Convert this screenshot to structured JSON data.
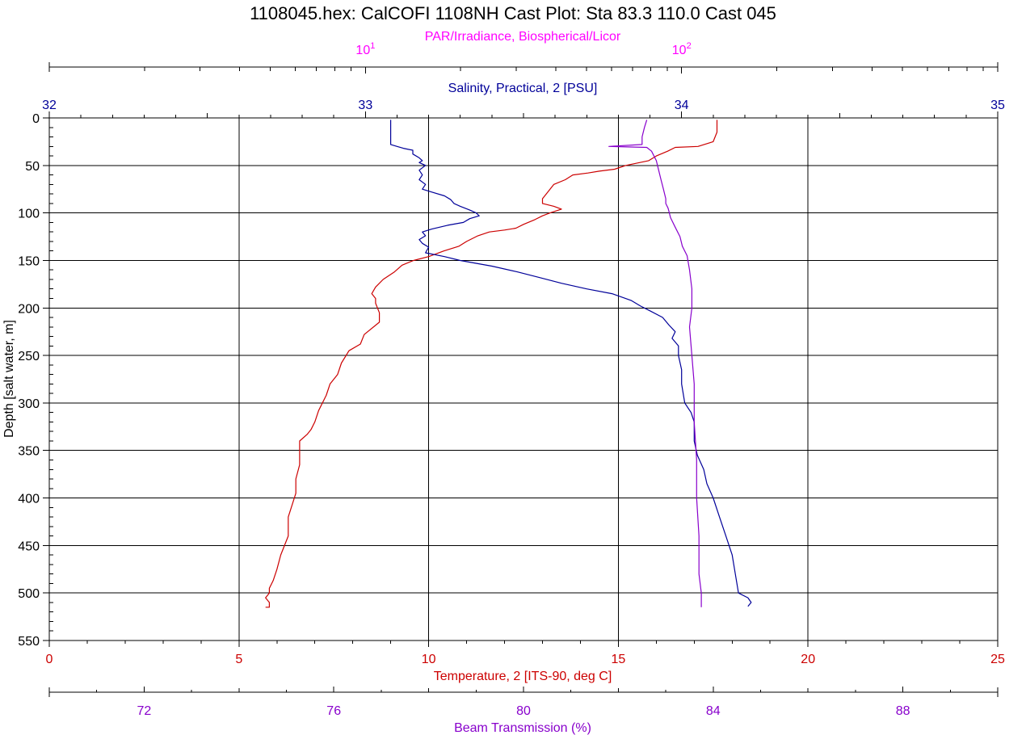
{
  "chart_data": {
    "type": "line",
    "title": "1108045.hex:  CalCOFI 1108NH Cast Plot: Sta 83.3  110.0  Cast 045",
    "ylabel": "Depth [salt water, m]",
    "ylim": [
      550,
      0
    ],
    "y_ticks": [
      "0",
      "50",
      "100",
      "150",
      "200",
      "250",
      "300",
      "350",
      "400",
      "450",
      "500",
      "550"
    ],
    "grid": true,
    "colors": {
      "temperature": "#cc0000",
      "salinity": "#000099",
      "beam": "#8800cc",
      "par": "#ff00ff",
      "grid": "#000000"
    },
    "axes": {
      "par": {
        "label": "PAR/Irradiance, Biospherical/Licor",
        "scale": "log",
        "range": [
          1,
          1000
        ],
        "tick_labels": [
          {
            "value": 10,
            "base": "10",
            "exponent": "1"
          },
          {
            "value": 100,
            "base": "10",
            "exponent": "2"
          }
        ]
      },
      "salinity": {
        "label": "Salinity, Practical, 2 [PSU]",
        "range": [
          32,
          35
        ],
        "ticks": [
          32,
          33,
          34,
          35
        ],
        "tick_labels": [
          "32",
          "33",
          "34",
          "35"
        ]
      },
      "temperature": {
        "label": "Temperature, 2 [ITS-90, deg C]",
        "range": [
          0,
          25
        ],
        "ticks": [
          0,
          5,
          10,
          15,
          20,
          25
        ],
        "tick_labels": [
          "0",
          "5",
          "10",
          "15",
          "20",
          "25"
        ]
      },
      "beam": {
        "label": "Beam Transmission (%)",
        "range": [
          70,
          90
        ],
        "ticks": [
          72,
          76,
          80,
          84,
          88
        ],
        "tick_labels": [
          "72",
          "76",
          "80",
          "84",
          "88"
        ]
      }
    },
    "series": [
      {
        "key": "temperature",
        "axis": "temperature",
        "color": "#cc0000",
        "points": [
          [
            17.6,
            2
          ],
          [
            17.6,
            15
          ],
          [
            17.5,
            25
          ],
          [
            17.1,
            30
          ],
          [
            16.5,
            31
          ],
          [
            16.3,
            35
          ],
          [
            16.0,
            40
          ],
          [
            15.8,
            45
          ],
          [
            15.2,
            50
          ],
          [
            14.9,
            54
          ],
          [
            14.5,
            56
          ],
          [
            14.2,
            58
          ],
          [
            13.8,
            60
          ],
          [
            13.6,
            65
          ],
          [
            13.3,
            70
          ],
          [
            13.1,
            80
          ],
          [
            13.0,
            85
          ],
          [
            13.0,
            90
          ],
          [
            13.3,
            93
          ],
          [
            13.5,
            96
          ],
          [
            13.2,
            100
          ],
          [
            13.0,
            103
          ],
          [
            12.8,
            107
          ],
          [
            12.5,
            112
          ],
          [
            12.3,
            116
          ],
          [
            12.0,
            118
          ],
          [
            11.6,
            120
          ],
          [
            11.3,
            124
          ],
          [
            11.0,
            130
          ],
          [
            10.8,
            135
          ],
          [
            10.4,
            140
          ],
          [
            10.0,
            146
          ],
          [
            9.6,
            150
          ],
          [
            9.3,
            155
          ],
          [
            9.1,
            162
          ],
          [
            8.8,
            170
          ],
          [
            8.6,
            178
          ],
          [
            8.5,
            185
          ],
          [
            8.6,
            190
          ],
          [
            8.6,
            195
          ],
          [
            8.7,
            205
          ],
          [
            8.7,
            215
          ],
          [
            8.3,
            228
          ],
          [
            8.2,
            238
          ],
          [
            7.9,
            245
          ],
          [
            7.7,
            258
          ],
          [
            7.6,
            270
          ],
          [
            7.4,
            280
          ],
          [
            7.3,
            292
          ],
          [
            7.1,
            308
          ],
          [
            7.0,
            320
          ],
          [
            6.9,
            328
          ],
          [
            6.8,
            333
          ],
          [
            6.6,
            340
          ],
          [
            6.6,
            350
          ],
          [
            6.6,
            365
          ],
          [
            6.5,
            380
          ],
          [
            6.5,
            395
          ],
          [
            6.3,
            420
          ],
          [
            6.3,
            440
          ],
          [
            6.1,
            460
          ],
          [
            6.0,
            475
          ],
          [
            5.9,
            487
          ],
          [
            5.8,
            495
          ],
          [
            5.8,
            500
          ],
          [
            5.7,
            505
          ],
          [
            5.8,
            510
          ],
          [
            5.8,
            515
          ],
          [
            5.7,
            515
          ]
        ]
      },
      {
        "key": "salinity",
        "axis": "salinity",
        "color": "#000099",
        "points": [
          [
            33.08,
            2
          ],
          [
            33.08,
            20
          ],
          [
            33.08,
            28
          ],
          [
            33.1,
            30
          ],
          [
            33.12,
            32
          ],
          [
            33.15,
            34
          ],
          [
            33.15,
            38
          ],
          [
            33.17,
            42
          ],
          [
            33.18,
            45
          ],
          [
            33.17,
            47
          ],
          [
            33.19,
            50
          ],
          [
            33.17,
            55
          ],
          [
            33.18,
            60
          ],
          [
            33.17,
            65
          ],
          [
            33.19,
            70
          ],
          [
            33.18,
            75
          ],
          [
            33.21,
            78
          ],
          [
            33.25,
            82
          ],
          [
            33.27,
            86
          ],
          [
            33.28,
            90
          ],
          [
            33.3,
            93
          ],
          [
            33.33,
            97
          ],
          [
            33.35,
            100
          ],
          [
            33.36,
            103
          ],
          [
            33.33,
            106
          ],
          [
            33.31,
            110
          ],
          [
            33.26,
            113
          ],
          [
            33.21,
            117
          ],
          [
            33.18,
            120
          ],
          [
            33.19,
            124
          ],
          [
            33.17,
            128
          ],
          [
            33.18,
            132
          ],
          [
            33.2,
            136
          ],
          [
            33.19,
            142
          ],
          [
            33.25,
            146
          ],
          [
            33.3,
            150
          ],
          [
            33.4,
            156
          ],
          [
            33.48,
            162
          ],
          [
            33.55,
            168
          ],
          [
            33.62,
            174
          ],
          [
            33.7,
            180
          ],
          [
            33.78,
            185
          ],
          [
            33.84,
            192
          ],
          [
            33.87,
            198
          ],
          [
            33.9,
            203
          ],
          [
            33.94,
            210
          ],
          [
            33.96,
            218
          ],
          [
            33.98,
            225
          ],
          [
            33.97,
            232
          ],
          [
            33.99,
            240
          ],
          [
            33.99,
            250
          ],
          [
            34.0,
            265
          ],
          [
            34.0,
            280
          ],
          [
            34.01,
            300
          ],
          [
            34.03,
            310
          ],
          [
            34.04,
            320
          ],
          [
            34.04,
            340
          ],
          [
            34.05,
            355
          ],
          [
            34.07,
            370
          ],
          [
            34.08,
            385
          ],
          [
            34.1,
            400
          ],
          [
            34.12,
            420
          ],
          [
            34.14,
            440
          ],
          [
            34.16,
            460
          ],
          [
            34.17,
            480
          ],
          [
            34.18,
            500
          ],
          [
            34.21,
            505
          ],
          [
            34.22,
            510
          ],
          [
            34.21,
            514
          ]
        ]
      },
      {
        "key": "beam",
        "axis": "beam",
        "color": "#8800cc",
        "points": [
          [
            82.6,
            2
          ],
          [
            82.55,
            10
          ],
          [
            82.5,
            20
          ],
          [
            82.5,
            28
          ],
          [
            81.8,
            30
          ],
          [
            82.6,
            31
          ],
          [
            82.7,
            35
          ],
          [
            82.8,
            45
          ],
          [
            82.85,
            55
          ],
          [
            82.9,
            65
          ],
          [
            82.95,
            75
          ],
          [
            83.0,
            85
          ],
          [
            83.0,
            90
          ],
          [
            83.05,
            95
          ],
          [
            83.1,
            105
          ],
          [
            83.2,
            115
          ],
          [
            83.3,
            125
          ],
          [
            83.35,
            135
          ],
          [
            83.45,
            145
          ],
          [
            83.5,
            160
          ],
          [
            83.55,
            180
          ],
          [
            83.55,
            200
          ],
          [
            83.5,
            220
          ],
          [
            83.55,
            250
          ],
          [
            83.6,
            280
          ],
          [
            83.6,
            320
          ],
          [
            83.65,
            360
          ],
          [
            83.65,
            400
          ],
          [
            83.7,
            440
          ],
          [
            83.7,
            480
          ],
          [
            83.75,
            500
          ],
          [
            83.75,
            515
          ]
        ]
      }
    ]
  }
}
